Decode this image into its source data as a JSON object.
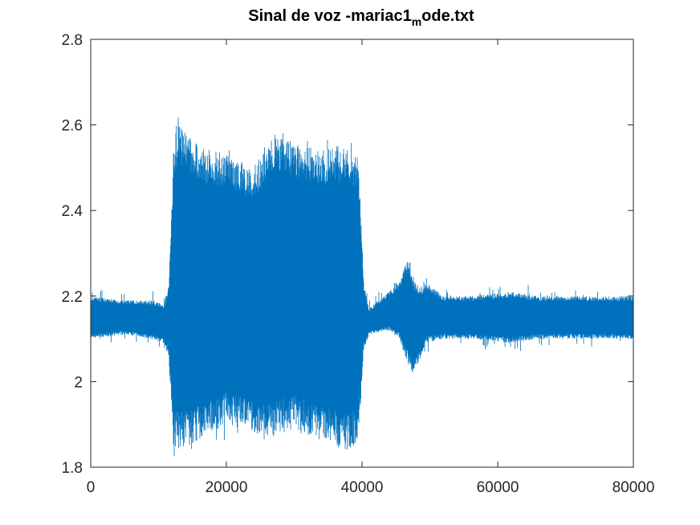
{
  "chart_data": {
    "type": "line",
    "title_main": "Sinal de voz -mariac1",
    "title_sub": "m",
    "title_end": "ode.txt",
    "xlabel": "",
    "ylabel": "",
    "xlim": [
      0,
      80000
    ],
    "ylim": [
      1.8,
      2.8
    ],
    "xticks": [
      0,
      20000,
      40000,
      60000,
      80000
    ],
    "xtick_labels": [
      "0",
      "20000",
      "40000",
      "60000",
      "80000"
    ],
    "yticks": [
      1.8,
      2.0,
      2.2,
      2.4,
      2.6,
      2.8
    ],
    "ytick_labels": [
      "1.8",
      "2",
      "2.2",
      "2.4",
      "2.6",
      "2.8"
    ],
    "grid": false,
    "line_color": "#0072BD",
    "envelope": {
      "x": [
        0,
        5000,
        9000,
        10800,
        11500,
        12200,
        13000,
        16000,
        20000,
        24000,
        27000,
        30000,
        34000,
        38000,
        39500,
        40200,
        41000,
        44000,
        45500,
        46800,
        47500,
        48500,
        49500,
        52000,
        56000,
        62000,
        66000,
        70000,
        74000,
        78000,
        80000
      ],
      "max": [
        2.2,
        2.19,
        2.19,
        2.18,
        2.22,
        2.54,
        2.6,
        2.55,
        2.53,
        2.5,
        2.58,
        2.56,
        2.54,
        2.55,
        2.52,
        2.24,
        2.17,
        2.21,
        2.23,
        2.29,
        2.24,
        2.22,
        2.23,
        2.2,
        2.2,
        2.21,
        2.2,
        2.2,
        2.2,
        2.2,
        2.2
      ],
      "min": [
        2.1,
        2.11,
        2.1,
        2.09,
        2.06,
        1.85,
        1.84,
        1.86,
        1.9,
        1.88,
        1.87,
        1.89,
        1.86,
        1.84,
        1.86,
        2.07,
        2.11,
        2.12,
        2.1,
        2.04,
        2.02,
        2.05,
        2.09,
        2.1,
        2.1,
        2.09,
        2.1,
        2.1,
        2.1,
        2.1,
        2.1
      ]
    }
  }
}
